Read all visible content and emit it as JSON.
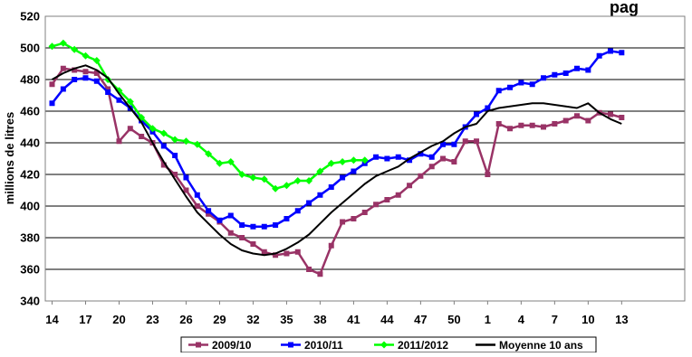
{
  "chart_data": {
    "type": "line",
    "title_fragment": "pag",
    "ylabel": "millions de litres",
    "xlabel": "",
    "ylim": [
      340,
      520
    ],
    "yticks": [
      340,
      360,
      380,
      400,
      420,
      440,
      460,
      480,
      500,
      520
    ],
    "x_tick_labels": [
      "14",
      "17",
      "20",
      "23",
      "26",
      "29",
      "32",
      "35",
      "38",
      "41",
      "44",
      "47",
      "50",
      "1",
      "4",
      "7",
      "10",
      "13"
    ],
    "grid": "horizontal",
    "legend_position": "bottom",
    "series": [
      {
        "name": "2009/10",
        "color": "#993366",
        "marker": "square",
        "values": [
          477,
          487,
          486,
          485,
          484,
          474,
          441,
          449,
          444,
          440,
          426,
          420,
          410,
          400,
          395,
          390,
          383,
          380,
          376,
          371,
          369,
          370,
          371,
          360,
          357,
          375,
          390,
          392,
          396,
          401,
          404,
          407,
          413,
          419,
          425,
          430,
          428,
          441,
          441,
          420,
          452,
          449,
          451,
          451,
          450,
          452,
          454,
          457,
          454,
          459,
          458,
          456
        ]
      },
      {
        "name": "2010/11",
        "color": "#0000ff",
        "marker": "square",
        "values": [
          465,
          474,
          480,
          481,
          479,
          472,
          467,
          462,
          454,
          447,
          438,
          432,
          418,
          407,
          397,
          391,
          394,
          388,
          387,
          387,
          388,
          392,
          397,
          402,
          407,
          412,
          418,
          422,
          427,
          431,
          430,
          431,
          429,
          433,
          431,
          439,
          439,
          450,
          458,
          462,
          473,
          475,
          478,
          477,
          481,
          483,
          484,
          487,
          486,
          495,
          498,
          497
        ]
      },
      {
        "name": "2011/2012",
        "color": "#00ff00",
        "marker": "diamond",
        "values": [
          501,
          503,
          499,
          495,
          492,
          480,
          473,
          466,
          456,
          449,
          446,
          442,
          441,
          439,
          433,
          427,
          428,
          420,
          418,
          417,
          411,
          413,
          416,
          416,
          422,
          427,
          428,
          429,
          429
        ]
      },
      {
        "name": "Moyenne 10 ans",
        "color": "#000000",
        "marker": "none",
        "values": [
          480,
          484,
          487,
          489,
          486,
          481,
          471,
          462,
          453,
          440,
          428,
          417,
          406,
          396,
          389,
          382,
          376,
          372,
          370,
          369,
          370,
          373,
          377,
          382,
          389,
          396,
          402,
          408,
          414,
          419,
          422,
          425,
          430,
          434,
          438,
          441,
          446,
          450,
          452,
          460,
          462,
          463,
          464,
          465,
          465,
          464,
          463,
          462,
          465,
          459,
          455,
          452
        ]
      }
    ]
  }
}
